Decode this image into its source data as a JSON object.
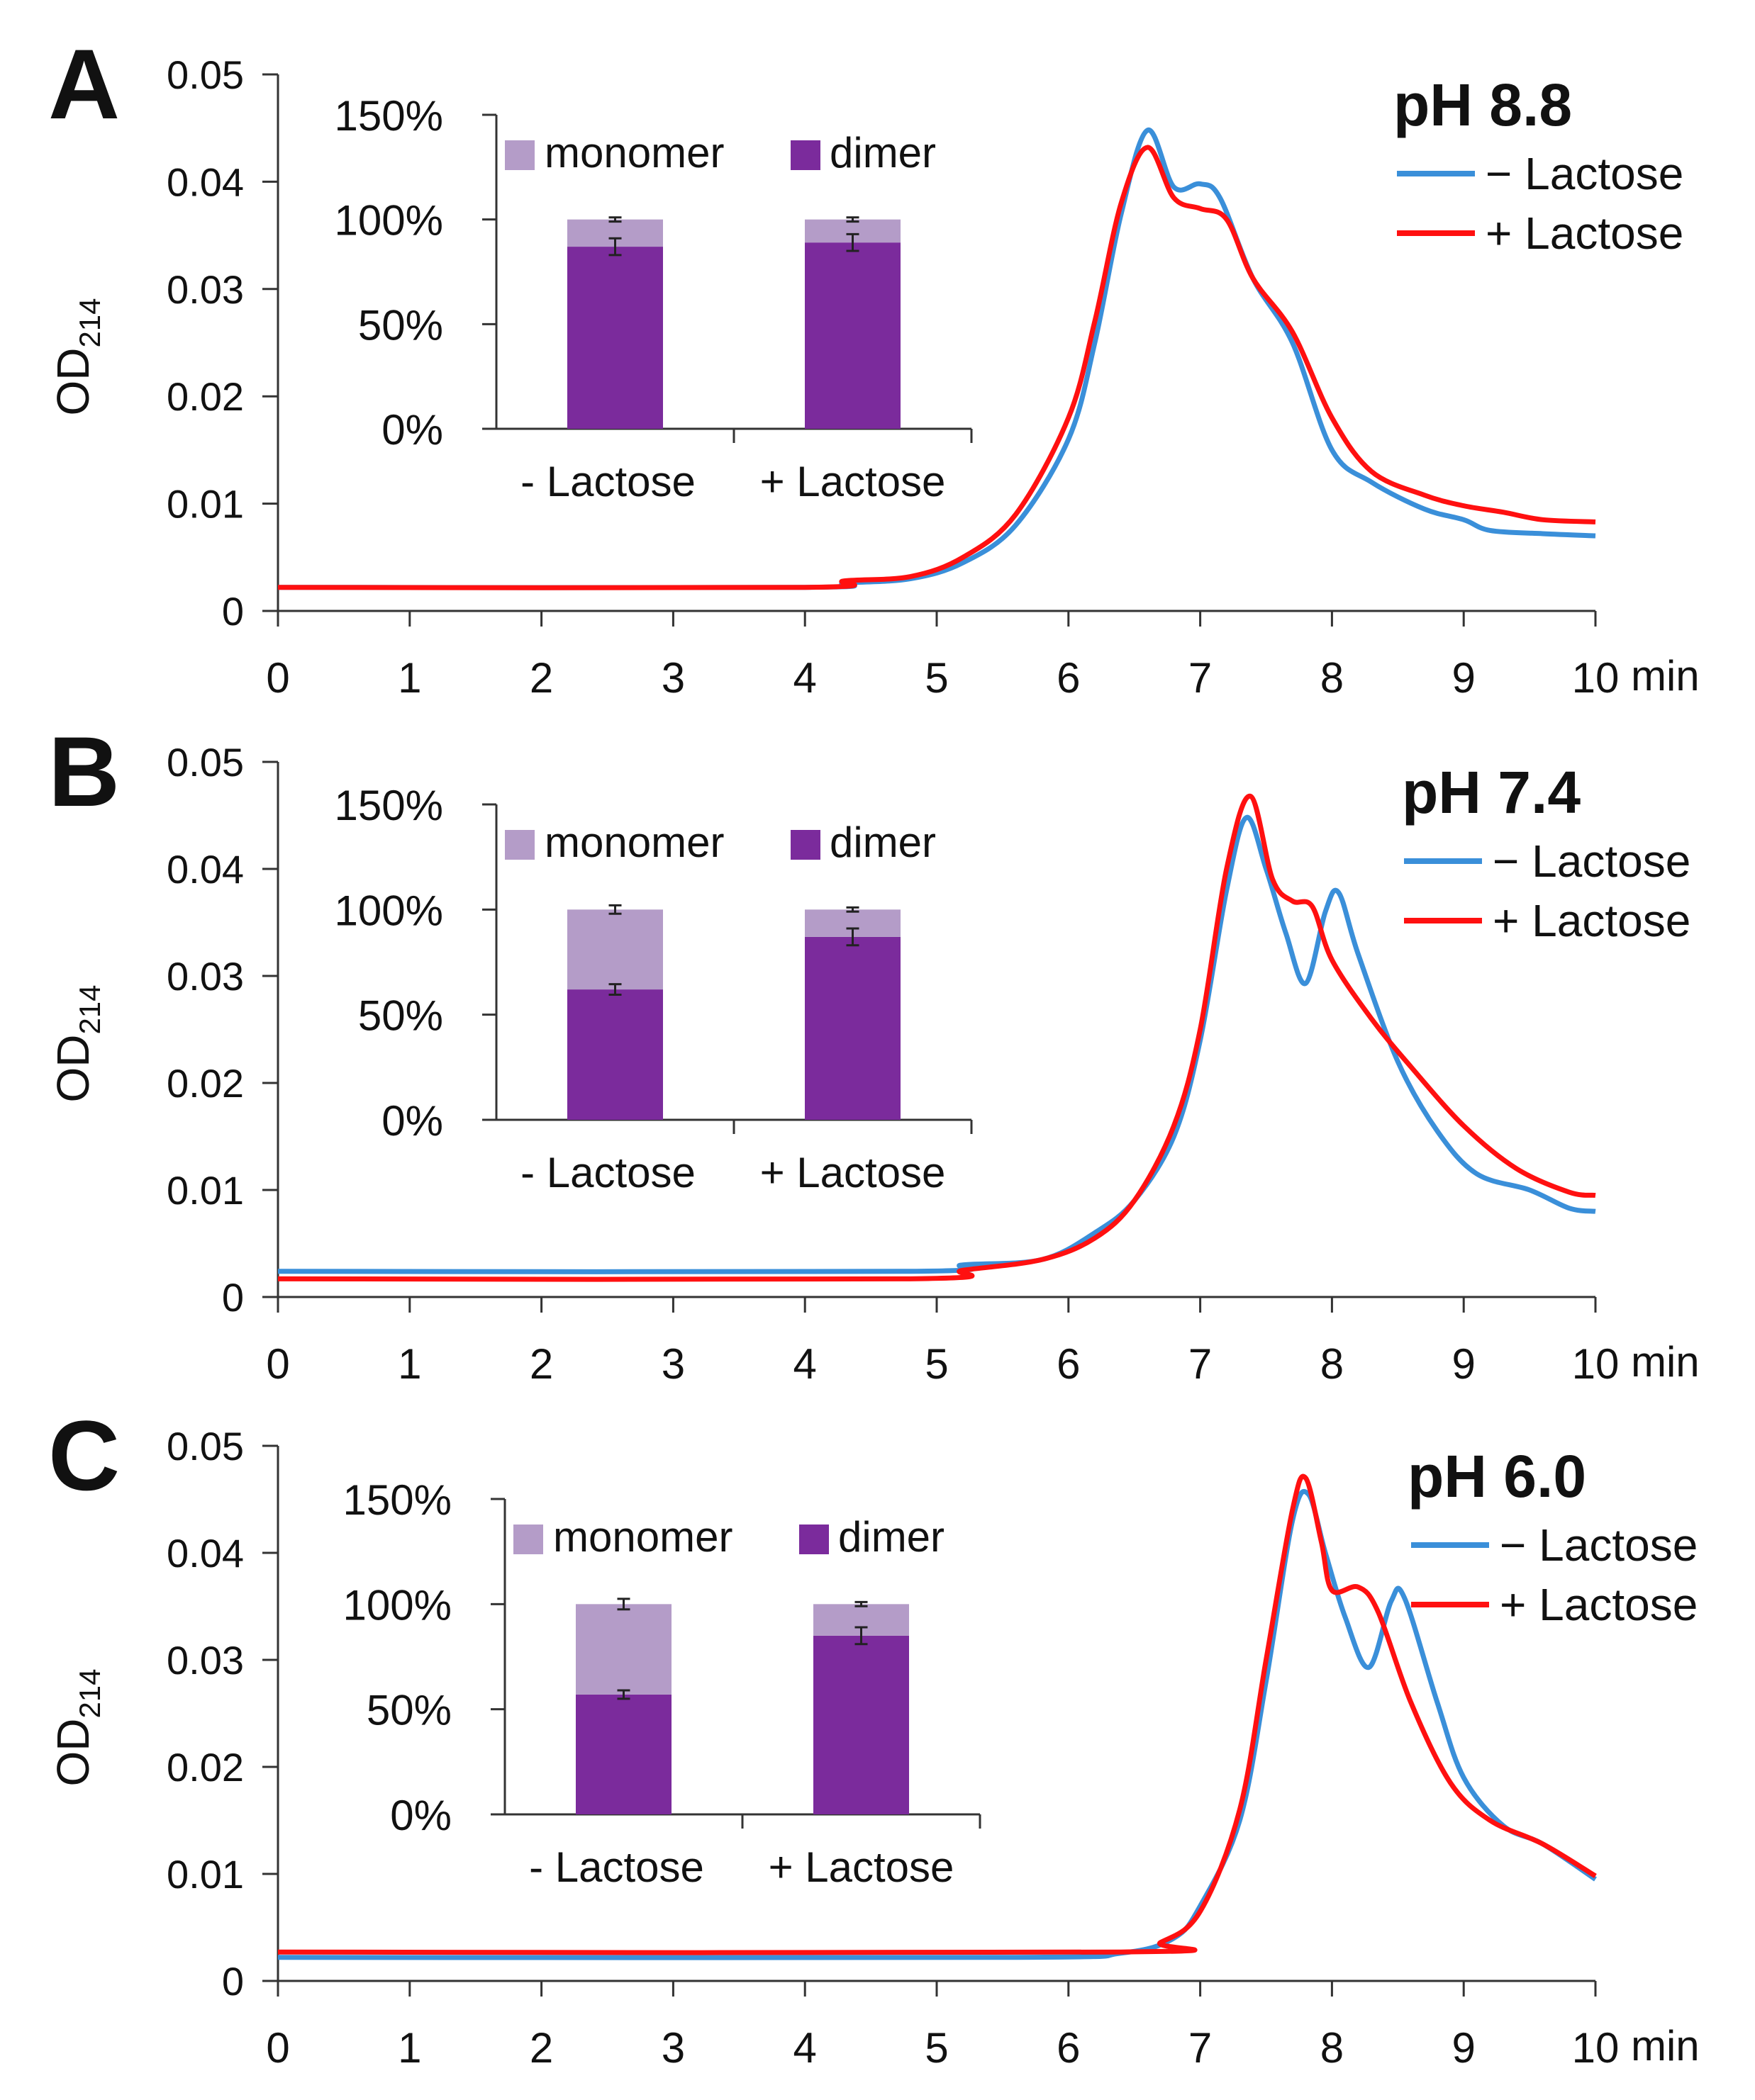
{
  "figure": {
    "x_unit_label": "min",
    "y_axis_label": "OD",
    "y_axis_subscript": "214"
  },
  "colors": {
    "minus_lactose": "#3a8fd9",
    "plus_lactose": "#ff1010",
    "monomer": "#b49cc8",
    "dimer": "#7b2b9c",
    "axis": "#333333"
  },
  "chart_data": [
    {
      "type": "line",
      "panel_label": "A",
      "title": "pH 8.8",
      "xlabel": "min",
      "ylabel": "OD214",
      "xlim": [
        0,
        10
      ],
      "ylim": [
        0,
        0.05
      ],
      "x_ticks": [
        "0",
        "1",
        "2",
        "3",
        "4",
        "5",
        "6",
        "7",
        "8",
        "9",
        "10"
      ],
      "y_ticks": [
        "0",
        "0.01",
        "0.02",
        "0.03",
        "0.04",
        "0.05"
      ],
      "legend": [
        "− Lactose",
        "+ Lactose"
      ],
      "series": [
        {
          "name": "− Lactose",
          "points": [
            [
              0,
              0.0022
            ],
            [
              4,
              0.0022
            ],
            [
              4.3,
              0.0026
            ],
            [
              4.8,
              0.003
            ],
            [
              5.2,
              0.0045
            ],
            [
              5.6,
              0.008
            ],
            [
              6.0,
              0.016
            ],
            [
              6.2,
              0.025
            ],
            [
              6.4,
              0.037
            ],
            [
              6.6,
              0.0448
            ],
            [
              6.8,
              0.0395
            ],
            [
              7.0,
              0.0398
            ],
            [
              7.15,
              0.0385
            ],
            [
              7.4,
              0.031
            ],
            [
              7.7,
              0.025
            ],
            [
              8.0,
              0.015
            ],
            [
              8.3,
              0.012
            ],
            [
              8.7,
              0.0095
            ],
            [
              9.0,
              0.0085
            ],
            [
              9.2,
              0.0075
            ],
            [
              9.6,
              0.0072
            ],
            [
              10,
              0.007
            ]
          ]
        },
        {
          "name": "+ Lactose",
          "points": [
            [
              0,
              0.0022
            ],
            [
              4,
              0.0022
            ],
            [
              4.3,
              0.0028
            ],
            [
              4.8,
              0.0032
            ],
            [
              5.2,
              0.005
            ],
            [
              5.6,
              0.009
            ],
            [
              6.0,
              0.018
            ],
            [
              6.2,
              0.027
            ],
            [
              6.4,
              0.038
            ],
            [
              6.6,
              0.0432
            ],
            [
              6.8,
              0.0385
            ],
            [
              7.0,
              0.0375
            ],
            [
              7.2,
              0.0365
            ],
            [
              7.4,
              0.031
            ],
            [
              7.7,
              0.026
            ],
            [
              8.0,
              0.018
            ],
            [
              8.3,
              0.013
            ],
            [
              8.7,
              0.0108
            ],
            [
              9.0,
              0.0098
            ],
            [
              9.3,
              0.0092
            ],
            [
              9.6,
              0.0085
            ],
            [
              10,
              0.0083
            ]
          ]
        }
      ],
      "inset": {
        "type": "stacked_bar",
        "categories": [
          "- Lactose",
          "+ Lactose"
        ],
        "y_ticks": [
          "0%",
          "50%",
          "100%",
          "150%"
        ],
        "ylim": [
          0,
          150
        ],
        "legend": [
          "monomer",
          "dimer"
        ],
        "dimer": [
          87,
          89
        ],
        "monomer": [
          13,
          11
        ],
        "dimer_err": [
          4,
          4
        ],
        "total_err": [
          1,
          1
        ]
      }
    },
    {
      "type": "line",
      "panel_label": "B",
      "title": "pH 7.4",
      "xlabel": "min",
      "ylabel": "OD214",
      "xlim": [
        0,
        10
      ],
      "ylim": [
        0,
        0.05
      ],
      "x_ticks": [
        "0",
        "1",
        "2",
        "3",
        "4",
        "5",
        "6",
        "7",
        "8",
        "9",
        "10"
      ],
      "y_ticks": [
        "0",
        "0.01",
        "0.02",
        "0.03",
        "0.04",
        "0.05"
      ],
      "legend": [
        "− Lactose",
        "+ Lactose"
      ],
      "series": [
        {
          "name": "− Lactose",
          "points": [
            [
              0,
              0.0024
            ],
            [
              4.8,
              0.0024
            ],
            [
              5.2,
              0.003
            ],
            [
              5.8,
              0.0035
            ],
            [
              6.2,
              0.006
            ],
            [
              6.5,
              0.009
            ],
            [
              6.8,
              0.015
            ],
            [
              7.0,
              0.024
            ],
            [
              7.2,
              0.038
            ],
            [
              7.35,
              0.0448
            ],
            [
              7.5,
              0.04
            ],
            [
              7.65,
              0.034
            ],
            [
              7.8,
              0.0293
            ],
            [
              7.95,
              0.036
            ],
            [
              8.05,
              0.0378
            ],
            [
              8.2,
              0.032
            ],
            [
              8.5,
              0.022
            ],
            [
              8.8,
              0.0155
            ],
            [
              9.1,
              0.0115
            ],
            [
              9.5,
              0.01
            ],
            [
              9.8,
              0.0083
            ],
            [
              10,
              0.008
            ]
          ]
        },
        {
          "name": "+ Lactose",
          "points": [
            [
              0,
              0.0017
            ],
            [
              4.8,
              0.0017
            ],
            [
              5.2,
              0.0025
            ],
            [
              5.8,
              0.0035
            ],
            [
              6.2,
              0.0055
            ],
            [
              6.5,
              0.009
            ],
            [
              6.8,
              0.016
            ],
            [
              7.0,
              0.025
            ],
            [
              7.2,
              0.04
            ],
            [
              7.38,
              0.0468
            ],
            [
              7.55,
              0.039
            ],
            [
              7.7,
              0.037
            ],
            [
              7.85,
              0.0365
            ],
            [
              8.0,
              0.0315
            ],
            [
              8.3,
              0.026
            ],
            [
              8.6,
              0.0215
            ],
            [
              9.0,
              0.016
            ],
            [
              9.4,
              0.012
            ],
            [
              9.8,
              0.0098
            ],
            [
              10,
              0.0095
            ]
          ]
        }
      ],
      "inset": {
        "type": "stacked_bar",
        "categories": [
          "- Lactose",
          "+ Lactose"
        ],
        "y_ticks": [
          "0%",
          "50%",
          "100%",
          "150%"
        ],
        "ylim": [
          0,
          150
        ],
        "legend": [
          "monomer",
          "dimer"
        ],
        "dimer": [
          62,
          87
        ],
        "monomer": [
          38,
          13
        ],
        "dimer_err": [
          2.5,
          4
        ],
        "total_err": [
          2,
          1
        ]
      }
    },
    {
      "type": "line",
      "panel_label": "C",
      "title": "pH 6.0",
      "xlabel": "min",
      "ylabel": "OD214",
      "xlim": [
        0,
        10
      ],
      "ylim": [
        0,
        0.05
      ],
      "x_ticks": [
        "0",
        "1",
        "2",
        "3",
        "4",
        "5",
        "6",
        "7",
        "8",
        "9",
        "10"
      ],
      "y_ticks": [
        "0",
        "0.01",
        "0.02",
        "0.03",
        "0.04",
        "0.05"
      ],
      "legend": [
        "− Lactose",
        "+ Lactose"
      ],
      "series": [
        {
          "name": "− Lactose",
          "points": [
            [
              0,
              0.0022
            ],
            [
              5.5,
              0.0022
            ],
            [
              6.4,
              0.0026
            ],
            [
              6.8,
              0.004
            ],
            [
              7.0,
              0.007
            ],
            [
              7.3,
              0.015
            ],
            [
              7.5,
              0.028
            ],
            [
              7.7,
              0.043
            ],
            [
              7.82,
              0.0455
            ],
            [
              7.95,
              0.04
            ],
            [
              8.1,
              0.034
            ],
            [
              8.28,
              0.0293
            ],
            [
              8.45,
              0.0355
            ],
            [
              8.55,
              0.0358
            ],
            [
              8.8,
              0.026
            ],
            [
              9.0,
              0.019
            ],
            [
              9.3,
              0.0145
            ],
            [
              9.6,
              0.0128
            ],
            [
              10,
              0.0095
            ]
          ]
        },
        {
          "name": "+ Lactose",
          "points": [
            [
              0,
              0.0027
            ],
            [
              6.4,
              0.0027
            ],
            [
              6.7,
              0.0036
            ],
            [
              7.0,
              0.0065
            ],
            [
              7.3,
              0.016
            ],
            [
              7.5,
              0.03
            ],
            [
              7.7,
              0.044
            ],
            [
              7.8,
              0.047
            ],
            [
              7.92,
              0.041
            ],
            [
              8.0,
              0.0365
            ],
            [
              8.2,
              0.0368
            ],
            [
              8.35,
              0.0345
            ],
            [
              8.6,
              0.026
            ],
            [
              8.9,
              0.0185
            ],
            [
              9.2,
              0.015
            ],
            [
              9.6,
              0.0128
            ],
            [
              10,
              0.0098
            ]
          ]
        }
      ],
      "inset": {
        "type": "stacked_bar",
        "categories": [
          "- Lactose",
          "+ Lactose"
        ],
        "y_ticks": [
          "0%",
          "50%",
          "100%",
          "150%"
        ],
        "ylim": [
          0,
          150
        ],
        "legend": [
          "monomer",
          "dimer"
        ],
        "dimer": [
          57,
          85
        ],
        "monomer": [
          43,
          15
        ],
        "dimer_err": [
          2,
          4
        ],
        "total_err": [
          2.5,
          1
        ]
      }
    }
  ]
}
